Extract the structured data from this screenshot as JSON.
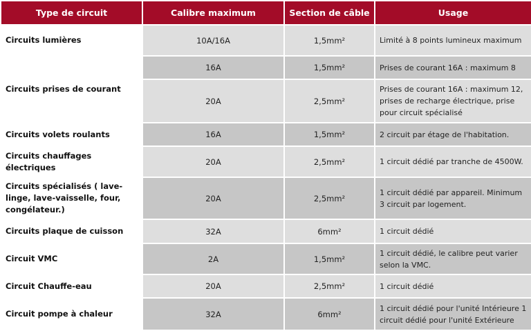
{
  "header_color": "#a30c28",
  "headers": [
    "Type de circuit",
    "Calibre maximum",
    "Section de câble",
    "Usage"
  ],
  "rows": [
    {
      "type": "Circuits lumières",
      "calibre": "10A/16A",
      "section": "1,5mm²",
      "usage": "Limité à 8 points lumineux maximum",
      "shade": "light"
    },
    {
      "type": "Circuits prises de courant",
      "calibre": "16A",
      "section": "1,5mm²",
      "usage": "Prises de courant 16A : maximum 8",
      "shade": "dark"
    },
    {
      "type": "",
      "calibre": "20A",
      "section": "2,5mm²",
      "usage": "Prises de courant 16A : maximum 12, prises de recharge électrique, prise pour circuit spécialisé",
      "shade": "light"
    },
    {
      "type": "Circuits volets roulants",
      "calibre": "16A",
      "section": "1,5mm²",
      "usage": "2 circuit par étage de l'habitation.",
      "shade": "dark"
    },
    {
      "type": "Circuits chauffages électriques",
      "calibre": "20A",
      "section": "2,5mm²",
      "usage": "1 circuit dédié par tranche de 4500W.",
      "shade": "light"
    },
    {
      "type": "Circuits spécialisés ( lave-linge, lave-vaisselle, four, congélateur.)",
      "calibre": "20A",
      "section": "2,5mm²",
      "usage": "1 circuit dédié par appareil. Minimum 3 circuit par logement.",
      "shade": "dark"
    },
    {
      "type": "Circuits plaque de cuisson",
      "calibre": "32A",
      "section": "6mm²",
      "usage": "1 circuit dédié",
      "shade": "light"
    },
    {
      "type": "Circuit VMC",
      "calibre": "2A",
      "section": "1,5mm²",
      "usage": "1 circuit dédié, le calibre peut varier selon la VMC.",
      "shade": "dark"
    },
    {
      "type": "Circuit Chauffe-eau",
      "calibre": "20A",
      "section": "2,5mm²",
      "usage": "1 circuit dédié",
      "shade": "light"
    },
    {
      "type": "Circuit pompe à chaleur",
      "calibre": "32A",
      "section": "6mm²",
      "usage": "1 circuit dédié pour l'unité Intérieure 1 circuit dédié pour l'unité Extérieure",
      "shade": "dark"
    }
  ]
}
